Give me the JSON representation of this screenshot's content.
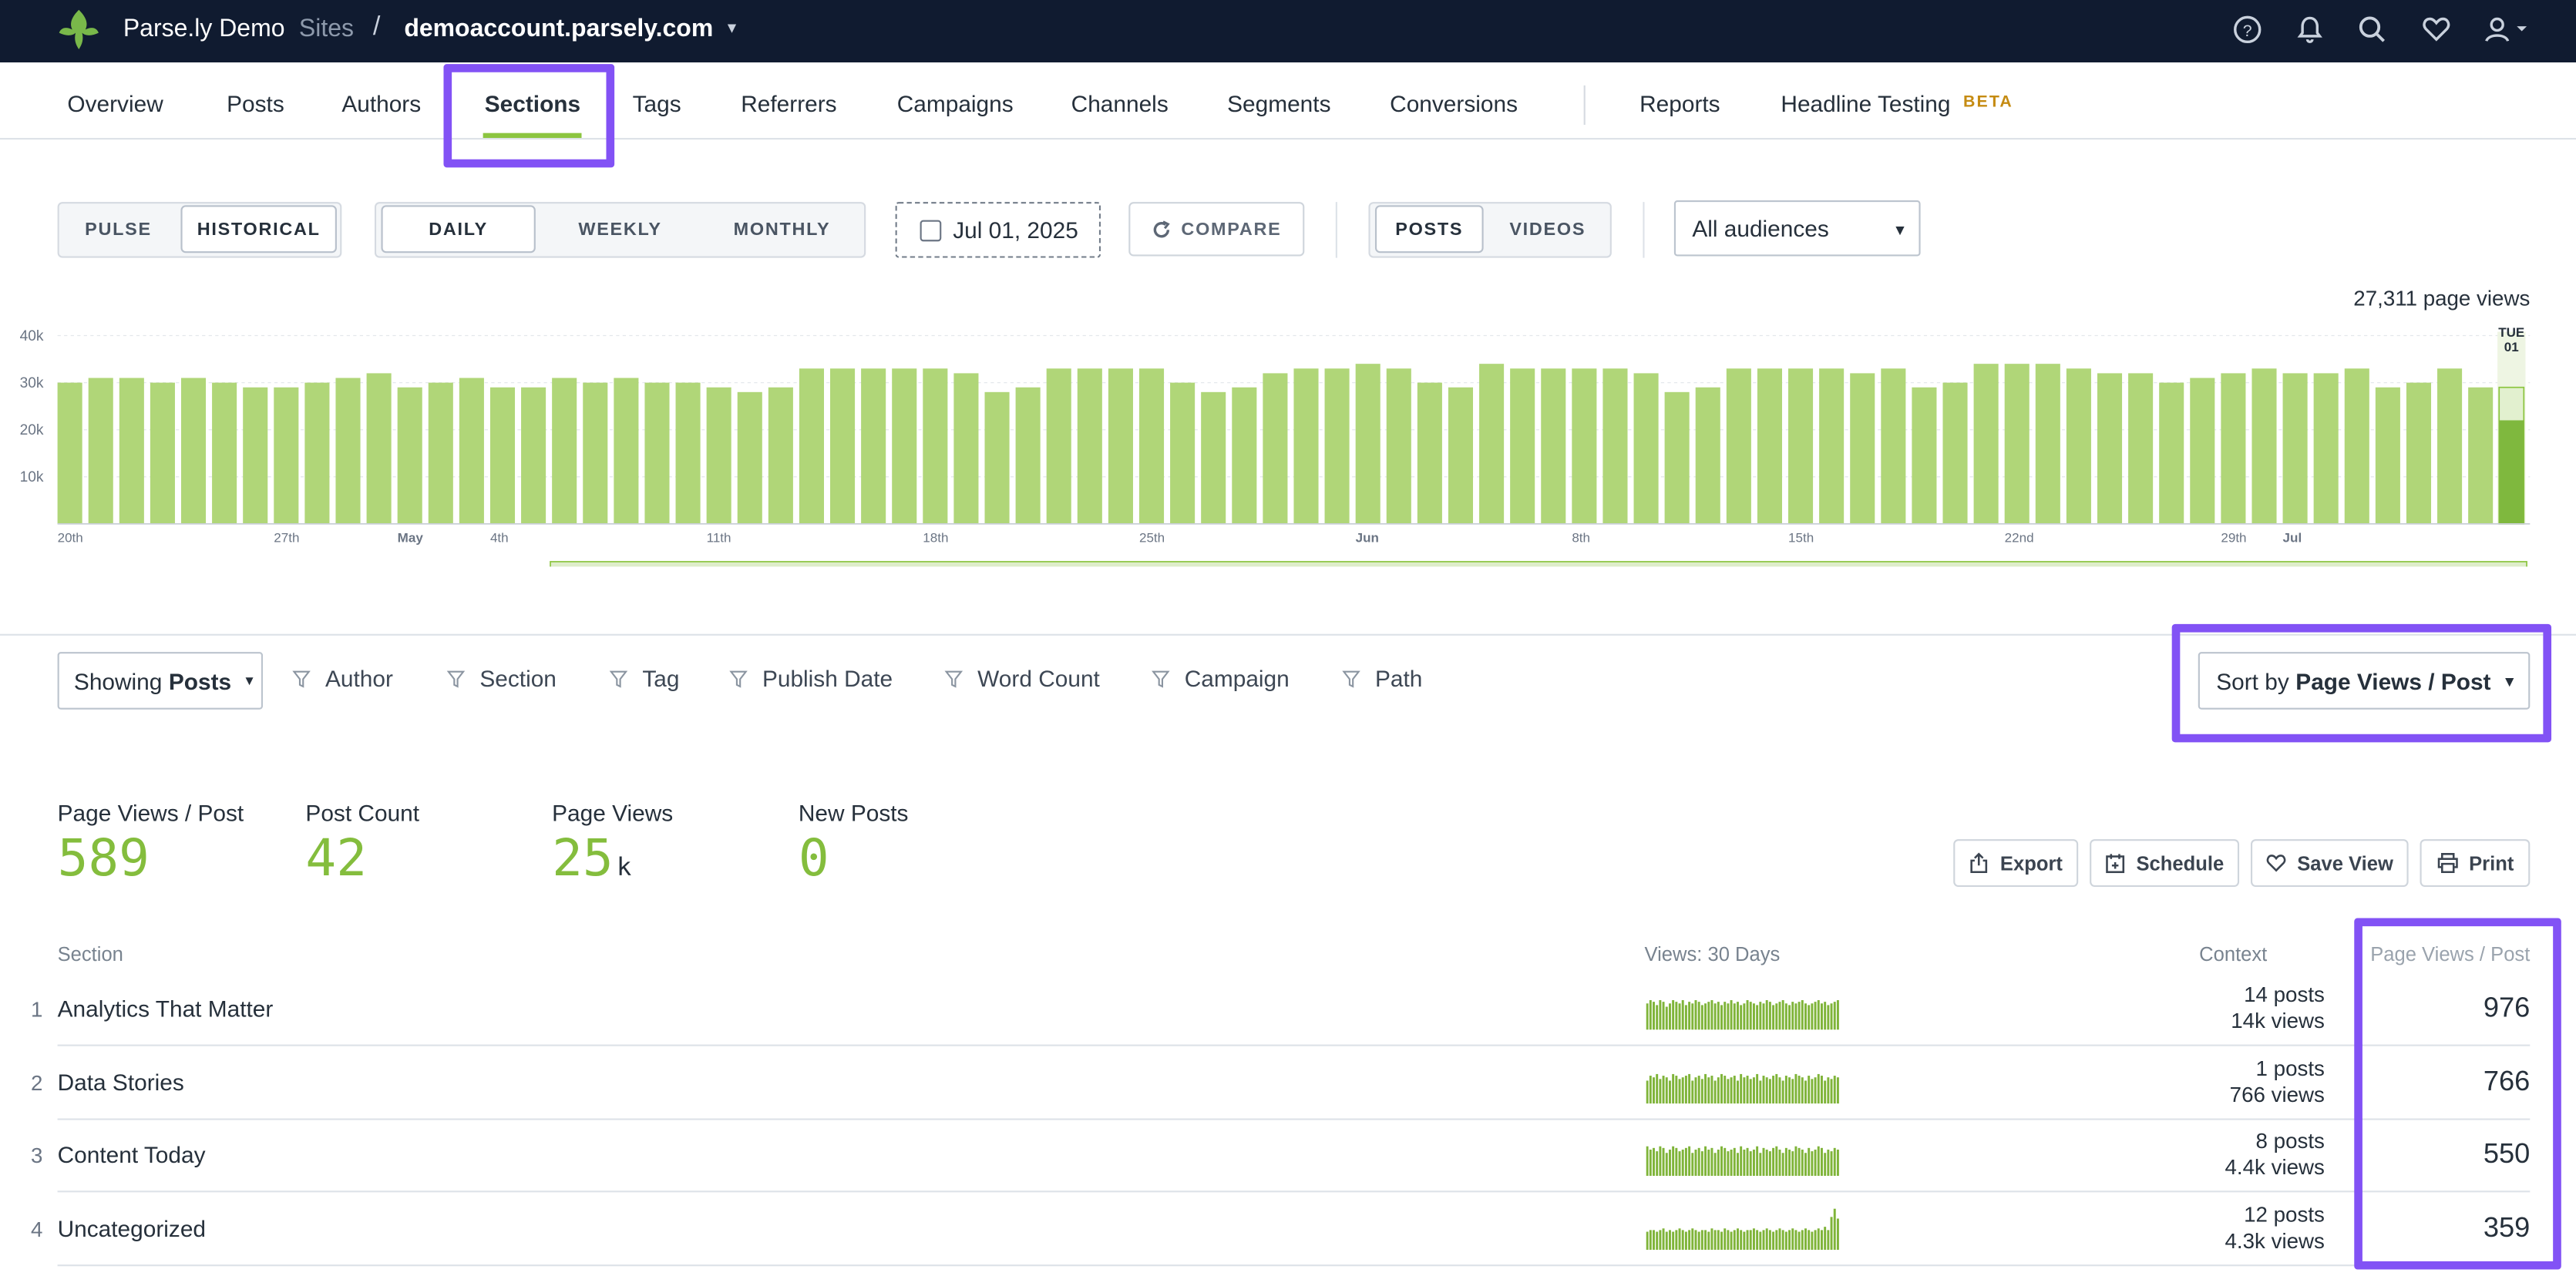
{
  "header": {
    "brand": "Parse.ly Demo",
    "sites_label": "Sites",
    "separator": "/",
    "domain": "demoaccount.parsely.com",
    "icons": [
      "help-icon",
      "bell-icon",
      "search-icon",
      "heart-icon",
      "user-icon"
    ]
  },
  "nav": {
    "items": [
      "Overview",
      "Posts",
      "Authors",
      "Sections",
      "Tags",
      "Referrers",
      "Campaigns",
      "Channels",
      "Segments",
      "Conversions",
      "Reports",
      "Headline Testing"
    ],
    "active": "Sections",
    "beta_badge": "BETA"
  },
  "controls": {
    "mode": [
      "PULSE",
      "HISTORICAL"
    ],
    "mode_active": "HISTORICAL",
    "period": [
      "DAILY",
      "WEEKLY",
      "MONTHLY"
    ],
    "period_active": "DAILY",
    "date": "Jul 01, 2025",
    "compare": "COMPARE",
    "content_type": [
      "POSTS",
      "VIDEOS"
    ],
    "content_active": "POSTS",
    "audience": "All audiences"
  },
  "page_views_total": "27,311 page views",
  "chart_data": {
    "type": "bar",
    "ylabel": "",
    "y_ticks": [
      "40k",
      "30k",
      "20k",
      "10k"
    ],
    "ylim": [
      0,
      45000
    ],
    "x_tick_labels": [
      {
        "label": "20th",
        "index": 0
      },
      {
        "label": "27th",
        "index": 7
      },
      {
        "label": "May",
        "index": 11
      },
      {
        "label": "4th",
        "index": 14
      },
      {
        "label": "11th",
        "index": 21
      },
      {
        "label": "18th",
        "index": 28
      },
      {
        "label": "25th",
        "index": 35
      },
      {
        "label": "Jun",
        "index": 42
      },
      {
        "label": "8th",
        "index": 49
      },
      {
        "label": "15th",
        "index": 56
      },
      {
        "label": "22nd",
        "index": 63
      },
      {
        "label": "29th",
        "index": 70
      },
      {
        "label": "Jul",
        "index": 72
      }
    ],
    "highlight_label": [
      "TUE",
      "01"
    ],
    "values": [
      30000,
      31000,
      31000,
      30000,
      31000,
      30000,
      29000,
      29000,
      30000,
      31000,
      32000,
      29000,
      30000,
      31000,
      29000,
      29000,
      31000,
      30000,
      31000,
      30000,
      30000,
      29000,
      28000,
      29000,
      33000,
      33000,
      33000,
      33000,
      33000,
      32000,
      28000,
      29000,
      33000,
      33000,
      33000,
      33000,
      30000,
      28000,
      29000,
      32000,
      33000,
      33000,
      34000,
      33000,
      30000,
      29000,
      34000,
      33000,
      33000,
      33000,
      33000,
      32000,
      28000,
      29000,
      33000,
      33000,
      33000,
      33000,
      32000,
      33000,
      29000,
      30000,
      34000,
      34000,
      34000,
      33000,
      32000,
      32000,
      30000,
      31000,
      32000,
      33000,
      32000,
      32000,
      33000,
      29000,
      30000,
      33000,
      29000
    ],
    "current_value": 29000,
    "current_partial": 22000
  },
  "filters": {
    "showing_prefix": "Showing",
    "showing_value": "Posts",
    "items": [
      "Author",
      "Section",
      "Tag",
      "Publish Date",
      "Word Count",
      "Campaign",
      "Path"
    ]
  },
  "sort": {
    "prefix": "Sort by",
    "value": "Page Views / Post"
  },
  "metrics": [
    {
      "label": "Page Views / Post",
      "value": "589",
      "suffix": ""
    },
    {
      "label": "Post Count",
      "value": "42",
      "suffix": ""
    },
    {
      "label": "Page Views",
      "value": "25",
      "suffix": "k"
    },
    {
      "label": "New Posts",
      "value": "0",
      "suffix": ""
    }
  ],
  "actions": [
    "Export",
    "Schedule",
    "Save View",
    "Print"
  ],
  "table": {
    "columns": [
      "Section",
      "Views: 30 Days",
      "Context",
      "Page Views / Post"
    ],
    "rows": [
      {
        "rank": "1",
        "name": "Analytics That Matter",
        "posts": "14 posts",
        "views": "14k views",
        "value": "976",
        "spark": [
          16,
          18,
          17,
          15,
          18,
          17,
          14,
          16,
          18,
          17,
          16,
          18,
          15,
          17,
          16,
          18,
          17,
          15,
          16,
          17,
          18,
          16,
          17,
          15,
          17,
          16,
          18,
          16,
          17,
          15,
          16,
          18,
          17,
          16,
          15,
          17,
          16,
          18,
          17,
          15,
          16,
          17,
          18,
          16,
          15,
          17,
          16,
          17,
          18,
          16,
          15,
          16,
          17,
          18,
          16,
          17,
          15,
          16,
          17,
          18
        ]
      },
      {
        "rank": "2",
        "name": "Data Stories",
        "posts": "1 posts",
        "views": "766 views",
        "value": "766",
        "spark": [
          14,
          17,
          16,
          18,
          15,
          17,
          16,
          14,
          18,
          17,
          15,
          16,
          17,
          18,
          14,
          16,
          17,
          15,
          18,
          16,
          17,
          14,
          16,
          18,
          17,
          15,
          16,
          17,
          14,
          18,
          16,
          17,
          15,
          16,
          18,
          14,
          17,
          16,
          15,
          17,
          18,
          16,
          14,
          17,
          16,
          15,
          18,
          17,
          16,
          14,
          17,
          15,
          16,
          18,
          17,
          14,
          16,
          15,
          17,
          16
        ]
      },
      {
        "rank": "3",
        "name": "Content Today",
        "posts": "8 posts",
        "views": "4.4k views",
        "value": "550",
        "spark": [
          18,
          16,
          17,
          15,
          18,
          17,
          14,
          16,
          18,
          17,
          15,
          16,
          17,
          18,
          14,
          16,
          17,
          15,
          18,
          16,
          17,
          14,
          16,
          18,
          17,
          15,
          16,
          17,
          14,
          18,
          16,
          17,
          15,
          16,
          18,
          14,
          17,
          16,
          15,
          17,
          18,
          16,
          14,
          17,
          16,
          15,
          18,
          17,
          16,
          14,
          17,
          15,
          16,
          18,
          17,
          14,
          16,
          15,
          17,
          16
        ]
      },
      {
        "rank": "4",
        "name": "Uncategorized",
        "posts": "12 posts",
        "views": "4.3k views",
        "value": "359",
        "spark": [
          11,
          12,
          12,
          11,
          12,
          13,
          11,
          12,
          11,
          12,
          13,
          12,
          11,
          12,
          13,
          12,
          11,
          12,
          12,
          11,
          13,
          12,
          12,
          11,
          13,
          12,
          11,
          12,
          13,
          12,
          11,
          12,
          12,
          13,
          12,
          11,
          12,
          13,
          12,
          11,
          12,
          13,
          12,
          11,
          12,
          13,
          12,
          11,
          12,
          13,
          12,
          11,
          12,
          13,
          12,
          14,
          12,
          20,
          25,
          19
        ]
      }
    ]
  }
}
